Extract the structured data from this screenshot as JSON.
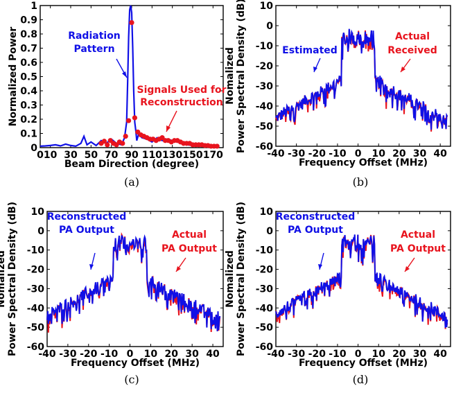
{
  "colors": {
    "blue": "#1010e6",
    "red": "#e8141e",
    "axis": "#000000"
  },
  "chart_data": [
    {
      "type": "line",
      "panel": "(a)",
      "xlabel": "Beam Direction (degree)",
      "ylabel": "Normalized Power",
      "xlim": [
        0,
        180
      ],
      "ylim": [
        0,
        1
      ],
      "xticks": [
        "0",
        "10",
        "30",
        "50",
        "70",
        "90",
        "110",
        "130",
        "150",
        "170"
      ],
      "yticks": [
        "0",
        "0.1",
        "0.2",
        "0.3",
        "0.4",
        "0.5",
        "0.6",
        "0.7",
        "0.8",
        "0.9",
        "1"
      ],
      "series": [
        {
          "name": "Radiation Pattern",
          "style": "line",
          "x": [
            0,
            5,
            10,
            15,
            20,
            25,
            30,
            35,
            40,
            43,
            46,
            50,
            55,
            60,
            65,
            70,
            75,
            80,
            83,
            85,
            86,
            87,
            88,
            89,
            90,
            91,
            92,
            93,
            94,
            95,
            97,
            100,
            105,
            110,
            115,
            120,
            125,
            130,
            135,
            140,
            145,
            150,
            155,
            160,
            165,
            170,
            175
          ],
          "y": [
            0.01,
            0.012,
            0.015,
            0.02,
            0.012,
            0.025,
            0.015,
            0.01,
            0.03,
            0.08,
            0.02,
            0.04,
            0.015,
            0.05,
            0.03,
            0.06,
            0.03,
            0.02,
            0.07,
            0.18,
            0.45,
            0.78,
            0.97,
            1.0,
            0.95,
            0.7,
            0.4,
            0.18,
            0.12,
            0.05,
            0.1,
            0.07,
            0.06,
            0.04,
            0.07,
            0.05,
            0.06,
            0.05,
            0.04,
            0.03,
            0.02,
            0.015,
            0.01,
            0.02,
            0.01,
            0.01,
            0.015
          ]
        },
        {
          "name": "Signals Used for Reconstruction",
          "style": "points",
          "x": [
            60,
            63,
            66,
            69,
            72,
            75,
            78,
            81,
            84,
            87,
            90,
            93,
            96,
            99,
            102,
            105,
            108,
            111,
            114,
            117,
            120,
            123,
            126,
            129,
            132,
            135,
            138,
            141,
            144,
            147,
            150,
            153,
            156,
            159,
            162,
            165,
            168,
            171,
            174
          ],
          "y": [
            0.03,
            0.045,
            0.02,
            0.05,
            0.03,
            0.02,
            0.04,
            0.03,
            0.08,
            0.19,
            0.88,
            0.21,
            0.11,
            0.09,
            0.08,
            0.07,
            0.06,
            0.06,
            0.05,
            0.06,
            0.07,
            0.05,
            0.05,
            0.04,
            0.05,
            0.05,
            0.04,
            0.03,
            0.03,
            0.03,
            0.02,
            0.02,
            0.02,
            0.02,
            0.015,
            0.015,
            0.01,
            0.01,
            0.01
          ]
        }
      ],
      "annotations": [
        {
          "lines": [
            "Radiation",
            "Pattern"
          ],
          "color": "blue"
        },
        {
          "lines": [
            "Signals Used for",
            "Reconstruction"
          ],
          "color": "red"
        }
      ]
    },
    {
      "type": "line",
      "panel": "(b)",
      "xlabel": "Frequency Offset (MHz)",
      "ylabel_lines": [
        "Nomalized",
        "Power Spectral Density (dB)"
      ],
      "xlim": [
        -40,
        45
      ],
      "ylim": [
        -60,
        10
      ],
      "xticks": [
        "-40",
        "-30",
        "-20",
        "-10",
        "0",
        "10",
        "20",
        "30",
        "40"
      ],
      "yticks": [
        "-60",
        "-50",
        "-40",
        "-30",
        "-20",
        "-10",
        "0",
        "10"
      ],
      "series": [
        {
          "name": "Estimated",
          "color": "blue"
        },
        {
          "name": "Actual Received",
          "color": "red"
        }
      ],
      "annotations": [
        {
          "lines": [
            "Estimated"
          ],
          "color": "blue"
        },
        {
          "lines": [
            "Actual",
            "Received"
          ],
          "color": "red"
        }
      ],
      "psd_profile": {
        "inband_mhz": [
          -8,
          8
        ],
        "inband_db": 0,
        "outband_edge_db": -27,
        "outband_far_db": -46
      }
    },
    {
      "type": "line",
      "panel": "(c)",
      "xlabel": "Frequency Offset (MHz)",
      "ylabel_lines": [
        "Nomalized",
        "Power Spectral Density (dB)"
      ],
      "xlim": [
        -40,
        45
      ],
      "ylim": [
        -60,
        10
      ],
      "xticks": [
        "-40",
        "-30",
        "-20",
        "-10",
        "0",
        "10",
        "20",
        "30",
        "40"
      ],
      "yticks": [
        "-60",
        "-50",
        "-40",
        "-30",
        "-20",
        "-10",
        "0",
        "10"
      ],
      "series": [
        {
          "name": "Reconstructed PA Output",
          "color": "blue"
        },
        {
          "name": "Actual PA Output",
          "color": "red"
        }
      ],
      "annotations": [
        {
          "lines": [
            "Reconstructed",
            "PA Output"
          ],
          "color": "blue"
        },
        {
          "lines": [
            "Actual",
            "PA Output"
          ],
          "color": "red"
        }
      ],
      "psd_profile": {
        "inband_mhz": [
          -8,
          8
        ],
        "inband_db": 0,
        "outband_edge_db": -25,
        "outband_far_db": -44
      }
    },
    {
      "type": "line",
      "panel": "(d)",
      "xlabel": "Frequency Offset (MHz)",
      "ylabel_lines": [
        "Nomalized",
        "Power Spectral Density (dB)"
      ],
      "xlim": [
        -40,
        45
      ],
      "ylim": [
        -60,
        10
      ],
      "xticks": [
        "-40",
        "-30",
        "-20",
        "-10",
        "0",
        "10",
        "20",
        "30",
        "40"
      ],
      "yticks": [
        "-60",
        "-50",
        "-40",
        "-30",
        "-20",
        "-10",
        "0",
        "10"
      ],
      "series": [
        {
          "name": "Reconstructed PA Output",
          "color": "blue"
        },
        {
          "name": "Actual PA Output",
          "color": "red"
        }
      ],
      "annotations": [
        {
          "lines": [
            "Reconstructed",
            "PA Output"
          ],
          "color": "blue"
        },
        {
          "lines": [
            "Actual",
            "PA Output"
          ],
          "color": "red"
        }
      ],
      "psd_profile": {
        "inband_mhz": [
          -8,
          8
        ],
        "inband_db": 0,
        "outband_edge_db": -24,
        "outband_far_db": -43
      }
    }
  ]
}
